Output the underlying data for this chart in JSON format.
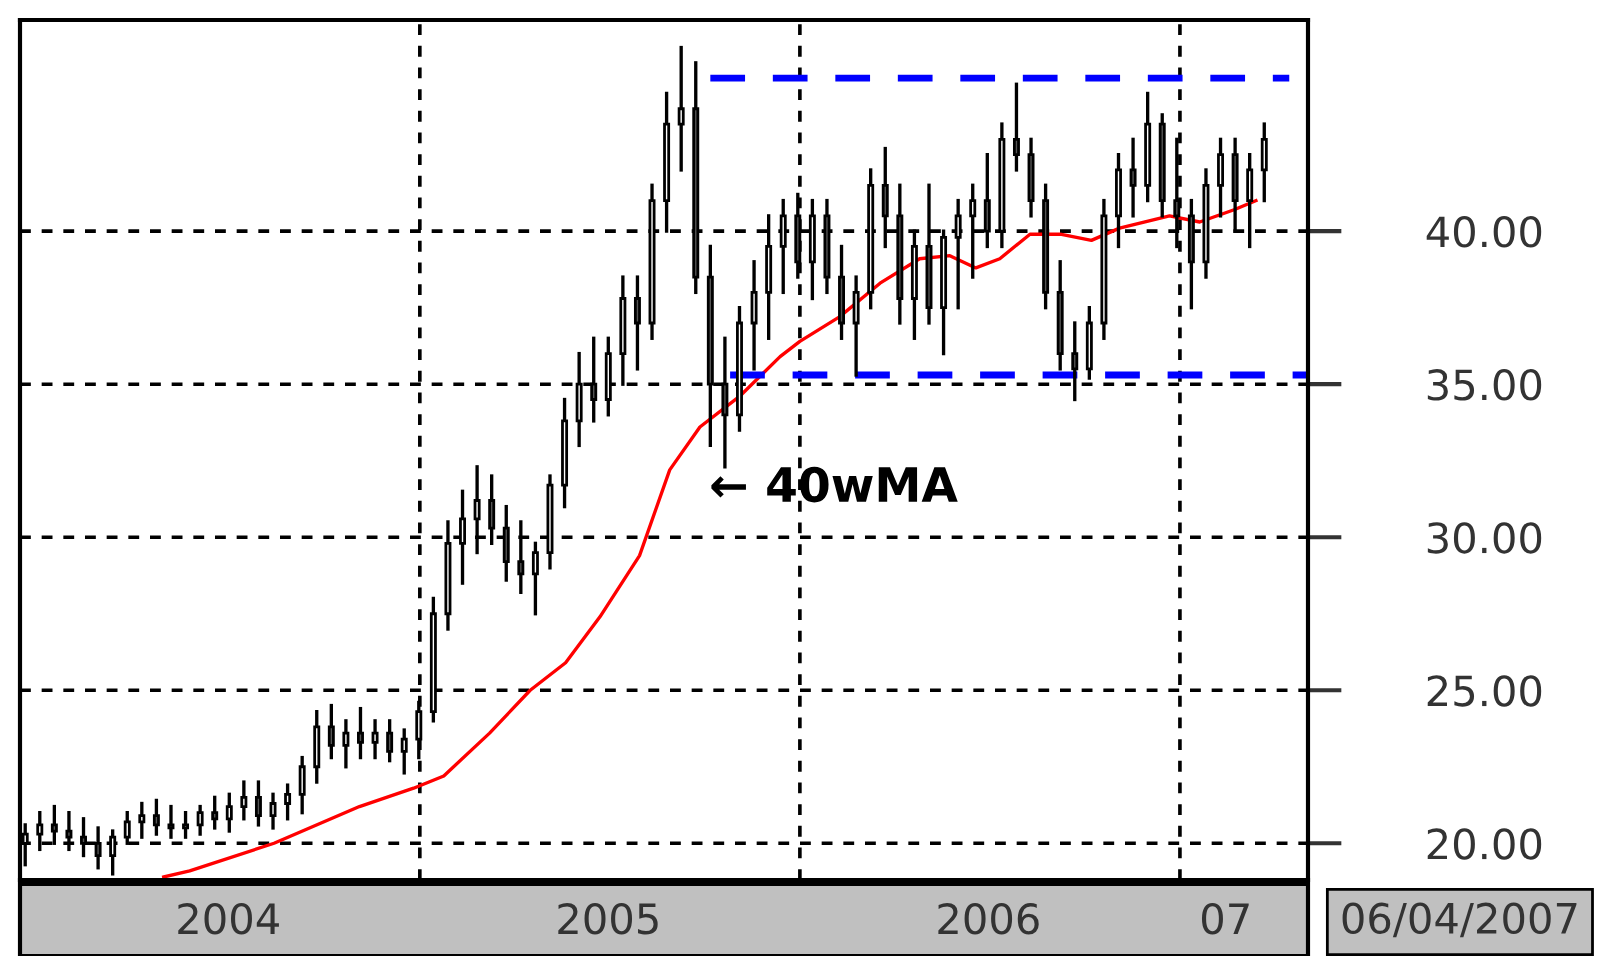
{
  "chart_data": {
    "type": "candlestick",
    "x": [
      "2003-12-19",
      "2004-01-02",
      "2004-01-16",
      "2004-01-30",
      "2004-02-13",
      "2004-02-27",
      "2004-03-12",
      "2004-03-26",
      "2004-04-09",
      "2004-04-23",
      "2004-05-07",
      "2004-05-21",
      "2004-06-04",
      "2004-06-18",
      "2004-07-02",
      "2004-07-16",
      "2004-07-30",
      "2004-08-13",
      "2004-08-27",
      "2004-09-10",
      "2004-09-24",
      "2004-10-08",
      "2004-10-22",
      "2004-11-05",
      "2004-11-19",
      "2004-12-03",
      "2004-12-17",
      "2004-12-31",
      "2005-01-14",
      "2005-01-28",
      "2005-02-11",
      "2005-02-25",
      "2005-03-11",
      "2005-03-25",
      "2005-04-08",
      "2005-04-22",
      "2005-05-06",
      "2005-05-20",
      "2005-06-03",
      "2005-06-17",
      "2005-07-01",
      "2005-07-15",
      "2005-07-29",
      "2005-08-12",
      "2005-08-26",
      "2005-09-09",
      "2005-09-23",
      "2005-10-07",
      "2005-10-21",
      "2005-11-04",
      "2005-11-18",
      "2005-12-02",
      "2005-12-16",
      "2005-12-30",
      "2006-01-13",
      "2006-01-27",
      "2006-02-10",
      "2006-02-24",
      "2006-03-10",
      "2006-03-24",
      "2006-04-07",
      "2006-04-21",
      "2006-05-05",
      "2006-05-19",
      "2006-06-02",
      "2006-06-16",
      "2006-06-30",
      "2006-07-14",
      "2006-07-28",
      "2006-08-11",
      "2006-08-25",
      "2006-09-08",
      "2006-09-22",
      "2006-10-06",
      "2006-10-20",
      "2006-11-03",
      "2006-11-17",
      "2006-12-01",
      "2006-12-15",
      "2006-12-29",
      "2007-01-12",
      "2007-01-26",
      "2007-02-09",
      "2007-02-23",
      "2007-03-09",
      "2007-03-23"
    ],
    "ohlc": [
      [
        20.0,
        20.6,
        19.3,
        20.3
      ],
      [
        20.3,
        21.0,
        19.8,
        20.6
      ],
      [
        20.6,
        21.2,
        20.0,
        20.4
      ],
      [
        20.4,
        21.0,
        19.8,
        20.2
      ],
      [
        20.2,
        20.8,
        19.6,
        20.0
      ],
      [
        20.0,
        20.5,
        19.2,
        19.6
      ],
      [
        19.6,
        20.4,
        19.0,
        20.2
      ],
      [
        20.2,
        21.0,
        20.0,
        20.7
      ],
      [
        20.7,
        21.3,
        20.2,
        20.9
      ],
      [
        20.9,
        21.4,
        20.3,
        20.6
      ],
      [
        20.6,
        21.2,
        20.2,
        20.5
      ],
      [
        20.5,
        21.0,
        20.2,
        20.6
      ],
      [
        20.6,
        21.2,
        20.3,
        21.0
      ],
      [
        21.0,
        21.5,
        20.5,
        20.8
      ],
      [
        20.8,
        21.6,
        20.4,
        21.2
      ],
      [
        21.2,
        22.0,
        20.8,
        21.5
      ],
      [
        21.5,
        22.0,
        20.6,
        20.9
      ],
      [
        20.9,
        21.6,
        20.5,
        21.3
      ],
      [
        21.3,
        21.9,
        20.8,
        21.6
      ],
      [
        21.6,
        22.8,
        21.0,
        22.5
      ],
      [
        22.5,
        24.3,
        22.0,
        23.8
      ],
      [
        23.8,
        24.5,
        22.8,
        23.2
      ],
      [
        23.2,
        24.0,
        22.5,
        23.6
      ],
      [
        23.6,
        24.4,
        22.8,
        23.3
      ],
      [
        23.3,
        24.0,
        22.8,
        23.6
      ],
      [
        23.6,
        24.0,
        22.7,
        23.0
      ],
      [
        23.0,
        23.7,
        22.3,
        23.4
      ],
      [
        23.4,
        24.6,
        22.8,
        24.3
      ],
      [
        24.3,
        28.0,
        24.0,
        27.5
      ],
      [
        27.5,
        30.5,
        27.0,
        29.8
      ],
      [
        29.8,
        31.5,
        28.5,
        30.6
      ],
      [
        30.6,
        32.3,
        29.5,
        31.2
      ],
      [
        31.2,
        32.0,
        29.8,
        30.3
      ],
      [
        30.3,
        31.0,
        28.6,
        29.2
      ],
      [
        29.2,
        30.5,
        28.2,
        28.8
      ],
      [
        28.8,
        29.8,
        27.5,
        29.5
      ],
      [
        29.5,
        32.0,
        29.0,
        31.7
      ],
      [
        31.7,
        34.5,
        31.0,
        33.8
      ],
      [
        33.8,
        36.0,
        33.0,
        35.0
      ],
      [
        35.0,
        36.5,
        33.8,
        34.5
      ],
      [
        34.5,
        36.5,
        34.0,
        36.0
      ],
      [
        36.0,
        38.5,
        35.0,
        37.8
      ],
      [
        37.8,
        38.5,
        35.5,
        37.0
      ],
      [
        37.0,
        41.5,
        36.5,
        41.0
      ],
      [
        41.0,
        44.5,
        40.0,
        43.5
      ],
      [
        43.5,
        46.0,
        42.0,
        44.0
      ],
      [
        44.0,
        45.5,
        38.0,
        38.5
      ],
      [
        38.5,
        39.5,
        33.0,
        35.0
      ],
      [
        35.0,
        36.5,
        32.3,
        34.0
      ],
      [
        34.0,
        37.5,
        33.5,
        37.0
      ],
      [
        37.0,
        39.0,
        35.5,
        38.0
      ],
      [
        38.0,
        40.5,
        36.5,
        39.5
      ],
      [
        39.5,
        41.0,
        38.0,
        40.5
      ],
      [
        40.5,
        41.2,
        38.5,
        39.0
      ],
      [
        39.0,
        41.0,
        37.8,
        40.5
      ],
      [
        40.5,
        41.0,
        38.0,
        38.5
      ],
      [
        38.5,
        39.5,
        36.5,
        37.0
      ],
      [
        37.0,
        38.5,
        35.3,
        38.0
      ],
      [
        38.0,
        42.0,
        37.5,
        41.5
      ],
      [
        41.5,
        42.7,
        39.5,
        40.5
      ],
      [
        40.5,
        41.5,
        37.0,
        37.8
      ],
      [
        37.8,
        40.0,
        36.5,
        39.5
      ],
      [
        39.5,
        41.5,
        37.0,
        37.5
      ],
      [
        37.5,
        40.0,
        36.0,
        39.8
      ],
      [
        39.8,
        41.0,
        37.5,
        40.5
      ],
      [
        40.5,
        41.5,
        38.5,
        41.0
      ],
      [
        41.0,
        42.5,
        39.5,
        40.0
      ],
      [
        40.0,
        43.5,
        39.5,
        43.0
      ],
      [
        43.0,
        44.8,
        42.0,
        42.5
      ],
      [
        42.5,
        43.0,
        40.5,
        41.0
      ],
      [
        41.0,
        41.5,
        37.5,
        38.0
      ],
      [
        38.0,
        39.0,
        35.5,
        36.0
      ],
      [
        36.0,
        37.0,
        34.5,
        35.5
      ],
      [
        35.5,
        37.5,
        35.2,
        37.0
      ],
      [
        37.0,
        41.0,
        36.5,
        40.5
      ],
      [
        40.5,
        42.5,
        39.5,
        42.0
      ],
      [
        42.0,
        43.0,
        40.5,
        41.5
      ],
      [
        41.5,
        44.5,
        41.0,
        43.5
      ],
      [
        43.5,
        43.8,
        40.5,
        41.0
      ],
      [
        41.0,
        43.0,
        39.5,
        40.5
      ],
      [
        40.5,
        41.0,
        37.5,
        39.0
      ],
      [
        39.0,
        42.0,
        38.5,
        41.5
      ],
      [
        41.5,
        43.0,
        40.5,
        42.5
      ],
      [
        42.5,
        43.0,
        40.0,
        41.0
      ],
      [
        41.0,
        42.5,
        39.5,
        42.0
      ],
      [
        42.0,
        43.5,
        41.0,
        43.0
      ]
    ],
    "color": "#000000",
    "series": [
      {
        "type": "line",
        "color": "#ff0000",
        "x": [
          "2004-04-30",
          "2004-05-25",
          "2004-08-14",
          "2004-11-04",
          "2004-12-26",
          "2005-01-24",
          "2005-03-09",
          "2005-04-17",
          "2005-05-21",
          "2005-06-23",
          "2005-07-31",
          "2005-08-29",
          "2005-09-27",
          "2005-11-04",
          "2005-12-13",
          "2006-01-01",
          "2006-02-08",
          "2006-03-19",
          "2006-04-26",
          "2006-05-25",
          "2006-06-19",
          "2006-07-12",
          "2006-08-10",
          "2006-09-08",
          "2006-10-08",
          "2006-11-04",
          "2006-12-22",
          "2007-01-20",
          "2007-02-22",
          "2007-03-15"
        ],
        "values": [
          18.9,
          19.1,
          20.0,
          21.2,
          21.8,
          22.2,
          23.6,
          25.0,
          25.9,
          27.4,
          29.4,
          32.2,
          33.6,
          34.6,
          35.9,
          36.4,
          37.2,
          38.3,
          39.1,
          39.2,
          38.8,
          39.1,
          39.9,
          39.9,
          39.7,
          40.1,
          40.5,
          40.3,
          40.7,
          41.0
        ]
      },
      {
        "type": "line",
        "color": "#0000ff",
        "line_style": "dashed",
        "x": [
          "2005-10-07",
          "2007-04-16"
        ],
        "values": [
          45.0,
          45.0
        ]
      },
      {
        "type": "line",
        "color": "#0000ff",
        "line_style": "dashed",
        "x": [
          "2005-10-26",
          "2007-05-03"
        ],
        "values": [
          35.3,
          35.3
        ]
      }
    ],
    "annotations": [
      "← 40wMA",
      "06/04/2007"
    ],
    "xlim": [
      "2003-12-14",
      "2007-05-04"
    ],
    "xticks": [
      {
        "value": "2004-07-01",
        "label": "2004"
      },
      {
        "value": "2005-01-01",
        "label": null
      },
      {
        "value": "2005-07-01",
        "label": "2005"
      },
      {
        "value": "2006-01-01",
        "label": null
      },
      {
        "value": "2006-07-01",
        "label": "2006"
      },
      {
        "value": "2007-01-01",
        "label": null
      },
      {
        "value": "2007-02-14",
        "label": "07"
      }
    ],
    "ylim": [
      18.8,
      46.9
    ],
    "yticks": [
      {
        "value": 20,
        "label": "20.00"
      },
      {
        "value": 25,
        "label": "25.00"
      },
      {
        "value": 30,
        "label": "30.00"
      },
      {
        "value": 35,
        "label": "35.00"
      },
      {
        "value": 40,
        "label": "40.00"
      }
    ],
    "grid": true,
    "legend": false
  }
}
